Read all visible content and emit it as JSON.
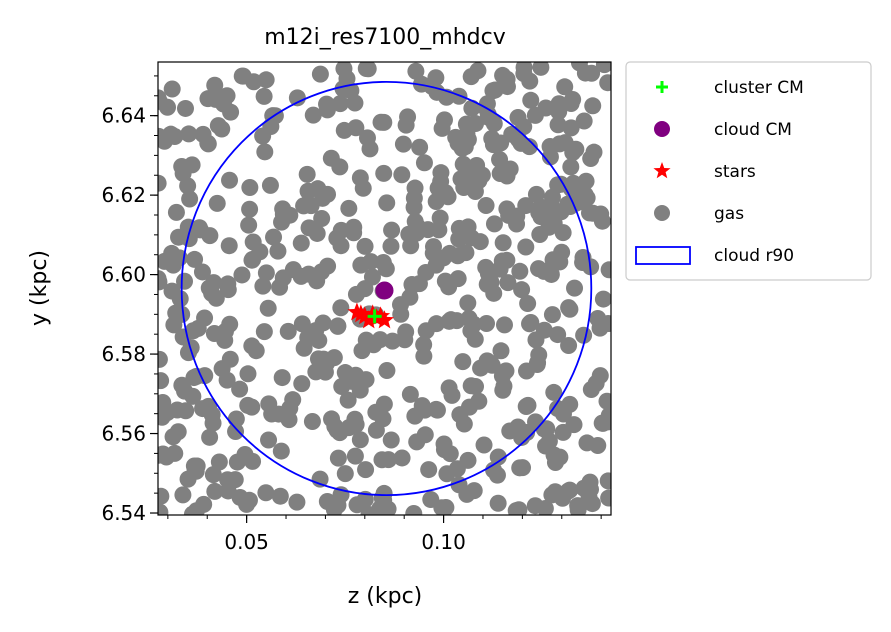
{
  "chart_data": {
    "type": "scatter",
    "title": "m12i_res7100_mhdcv",
    "xlabel": "z (kpc)",
    "ylabel": "y (kpc)",
    "xlim": [
      0.0275,
      0.1425
    ],
    "ylim": [
      6.5395,
      6.6535
    ],
    "x_ticks": [
      0.05,
      0.1
    ],
    "x_tick_labels": [
      "0.05",
      "0.10"
    ],
    "y_ticks": [
      6.54,
      6.56,
      6.58,
      6.6,
      6.62,
      6.64
    ],
    "y_tick_labels": [
      "6.54",
      "6.56",
      "6.58",
      "6.60",
      "6.62",
      "6.64"
    ],
    "grid": false,
    "legend_position": "outside-right-top",
    "legend": [
      {
        "label": "cluster CM",
        "marker": "plus",
        "color": "#00ff00"
      },
      {
        "label": "cloud CM",
        "marker": "circle",
        "color": "#800080"
      },
      {
        "label": "stars",
        "marker": "star",
        "color": "#ff0000"
      },
      {
        "label": "gas",
        "marker": "circle",
        "color": "#808080"
      },
      {
        "label": "cloud r90",
        "marker": "rect",
        "color": "#0000ff"
      }
    ],
    "series": [
      {
        "name": "gas",
        "color": "#808080",
        "marker": "circle",
        "note_count": "approx",
        "seed": 7,
        "count": 620,
        "distribution": {
          "x_range": [
            0.0275,
            0.1425
          ],
          "y_range": [
            6.5395,
            6.6535
          ]
        }
      },
      {
        "name": "stars",
        "color": "#ff0000",
        "marker": "star",
        "points": [
          [
            0.078,
            6.5905
          ],
          [
            0.08,
            6.5895
          ],
          [
            0.081,
            6.5885
          ],
          [
            0.082,
            6.59
          ],
          [
            0.083,
            6.589
          ],
          [
            0.084,
            6.5895
          ],
          [
            0.085,
            6.5885
          ],
          [
            0.079,
            6.59
          ]
        ]
      },
      {
        "name": "cluster CM",
        "color": "#00ff00",
        "marker": "plus",
        "points": [
          [
            0.0825,
            6.5895
          ]
        ]
      },
      {
        "name": "cloud CM",
        "color": "#800080",
        "marker": "circle",
        "points": [
          [
            0.085,
            6.596
          ]
        ]
      },
      {
        "name": "cloud r90",
        "color": "#0000ff",
        "marker": "circle-outline",
        "center": [
          0.0855,
          6.5965
        ],
        "radius": 0.052
      }
    ]
  }
}
